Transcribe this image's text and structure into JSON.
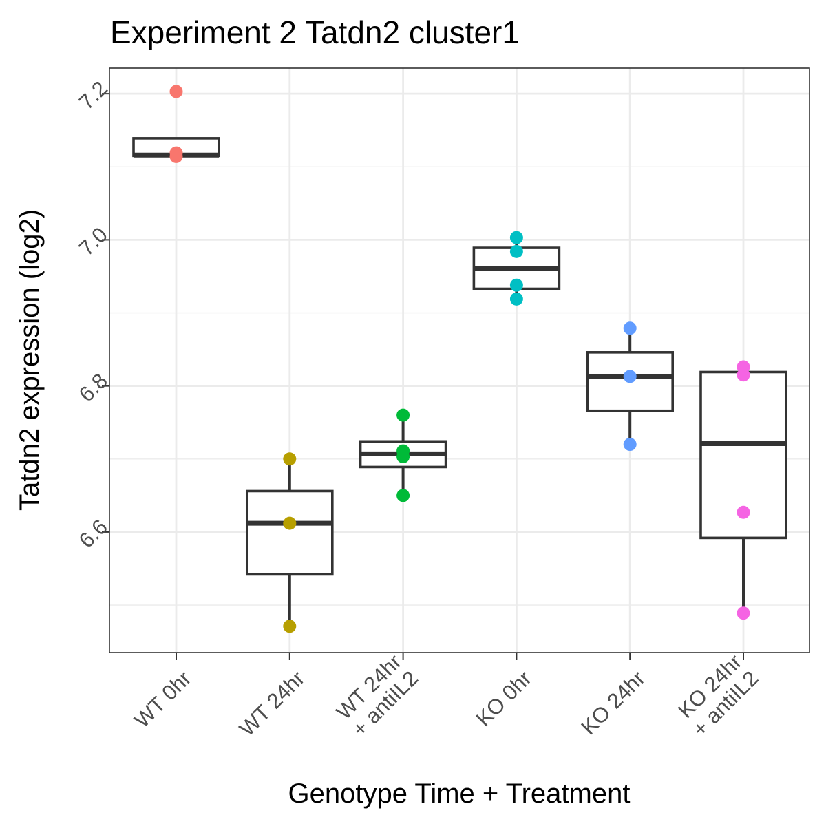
{
  "chart_data": {
    "type": "boxplot",
    "title": "Experiment 2 Tatdn2 cluster1",
    "xlabel": "Genotype Time + Treatment",
    "ylabel": "Tatdn2 expression (log2)",
    "ylim": [
      6.435,
      7.235
    ],
    "yticks": [
      6.6,
      6.8,
      7.0,
      7.2
    ],
    "ytick_labels": [
      "6.6",
      "6.8",
      "7.0",
      "7.2"
    ],
    "grid": true,
    "categories": [
      {
        "label_lines": [
          "WT 0hr"
        ],
        "color": "#F8766D",
        "box": {
          "lower": 7.115,
          "q1": 7.115,
          "median": 7.116,
          "q3": 7.139,
          "upper": 7.139
        },
        "points": [
          7.203,
          7.119,
          7.114
        ]
      },
      {
        "label_lines": [
          "WT 24hr"
        ],
        "color": "#B79F00",
        "box": {
          "lower": 6.471,
          "q1": 6.542,
          "median": 6.612,
          "q3": 6.656,
          "upper": 6.7
        },
        "points": [
          6.7,
          6.612,
          6.471
        ]
      },
      {
        "label_lines": [
          "WT 24hr",
          "+ antiIL2"
        ],
        "color": "#00BA38",
        "box": {
          "lower": 6.65,
          "q1": 6.689,
          "median": 6.707,
          "q3": 6.724,
          "upper": 6.76
        },
        "points": [
          6.76,
          6.711,
          6.703,
          6.65
        ]
      },
      {
        "label_lines": [
          "KO 0hr"
        ],
        "color": "#00BFC4",
        "box": {
          "lower": 6.919,
          "q1": 6.933,
          "median": 6.961,
          "q3": 6.989,
          "upper": 7.003
        },
        "points": [
          7.003,
          6.984,
          6.938,
          6.919
        ]
      },
      {
        "label_lines": [
          "KO 24hr"
        ],
        "color": "#619CFF",
        "box": {
          "lower": 6.72,
          "q1": 6.766,
          "median": 6.813,
          "q3": 6.846,
          "upper": 6.879
        },
        "points": [
          6.879,
          6.813,
          6.72
        ]
      },
      {
        "label_lines": [
          "KO 24hr",
          "+ antiIL2"
        ],
        "color": "#F564E3",
        "box": {
          "lower": 6.489,
          "q1": 6.592,
          "median": 6.721,
          "q3": 6.819,
          "upper": 6.826
        },
        "points": [
          6.826,
          6.815,
          6.627,
          6.489
        ]
      }
    ]
  }
}
